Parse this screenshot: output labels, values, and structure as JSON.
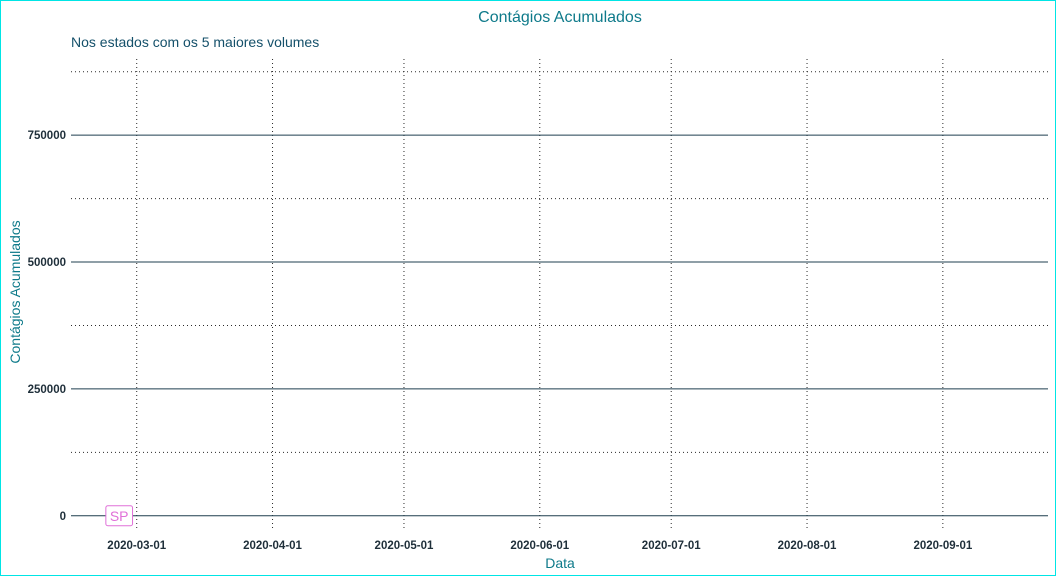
{
  "chart_data": {
    "type": "line",
    "title": "Contágios Acumulados",
    "subtitle": "Nos estados com os 5 maiores volumes",
    "xlabel": "Data",
    "ylabel": "Contágios Acumulados",
    "x_ticks": [
      "2020-03-01",
      "2020-04-01",
      "2020-05-01",
      "2020-06-01",
      "2020-07-01",
      "2020-08-01",
      "2020-09-01"
    ],
    "y_ticks": [
      0,
      250000,
      500000,
      750000
    ],
    "xlim": [
      "2020-02-15",
      "2020-09-25"
    ],
    "ylim": [
      -30000,
      900000
    ],
    "grid": {
      "major_y": "solid",
      "minor_y": "dotted",
      "major_x": "dotted"
    },
    "series": [
      {
        "name": "SP",
        "color": "#e070d8",
        "x": [
          "2020-02-26"
        ],
        "y": [
          0
        ]
      }
    ],
    "labels": [
      {
        "text": "SP",
        "x": "2020-02-26",
        "y": 0,
        "color": "#e070d8"
      }
    ]
  }
}
